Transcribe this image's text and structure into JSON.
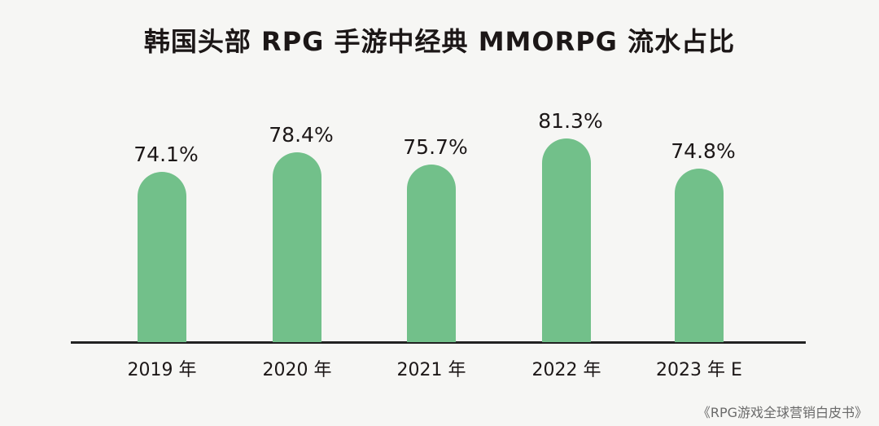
{
  "chart_data": {
    "type": "bar",
    "title": "韩国头部 RPG 手游中经典 MMORPG 流水占比",
    "categories": [
      "2019 年",
      "2020 年",
      "2021 年",
      "2022 年",
      "2023 年 E"
    ],
    "values": [
      74.1,
      78.4,
      75.7,
      81.3,
      74.8
    ],
    "value_labels": [
      "74.1%",
      "78.4%",
      "75.7%",
      "81.3%",
      "74.8%"
    ],
    "xlabel": "",
    "ylabel": "",
    "unit": "%",
    "grid": false,
    "legend": null,
    "bar_color": "#72c08a",
    "source": "《RPG游戏全球营销白皮书》"
  },
  "title": "韩国头部 RPG 手游中经典 MMORPG 流水占比",
  "source": "《RPG游戏全球营销白皮书》"
}
